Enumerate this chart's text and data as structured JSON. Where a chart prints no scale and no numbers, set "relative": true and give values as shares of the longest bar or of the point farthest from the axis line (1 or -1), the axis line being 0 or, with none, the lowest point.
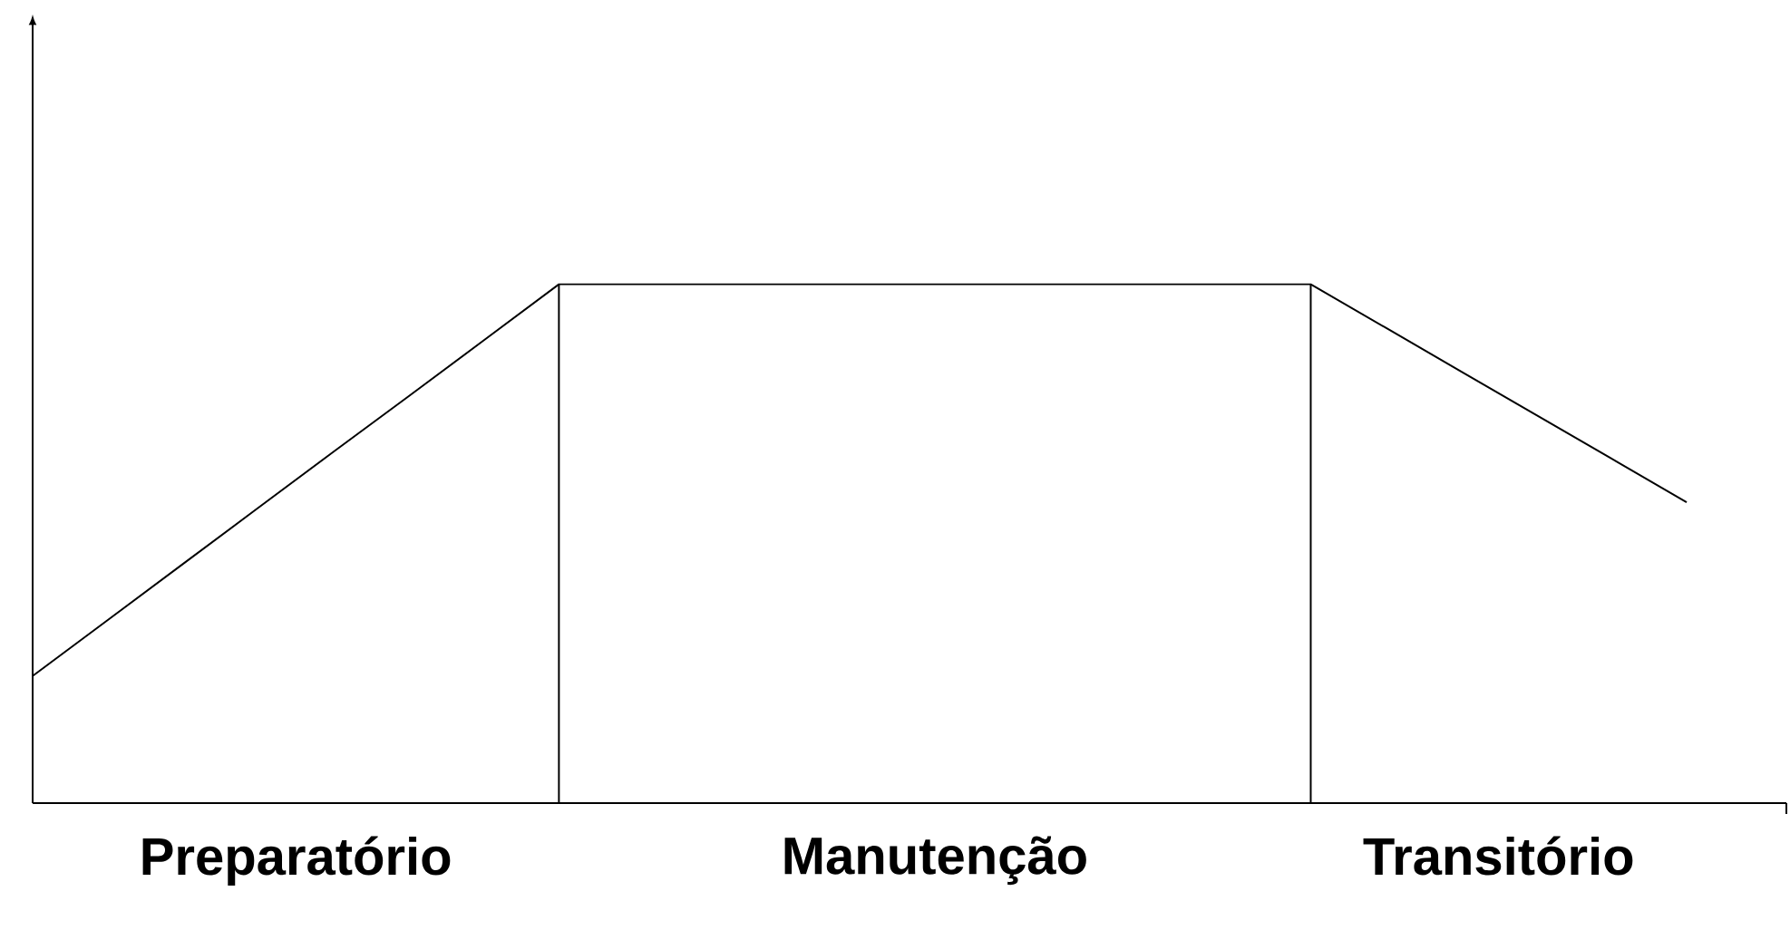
{
  "chart_data": {
    "type": "line",
    "relative": true,
    "categories": [
      null,
      null,
      null,
      null,
      null,
      null,
      null,
      null,
      null,
      null,
      null,
      null,
      null,
      null,
      null,
      null,
      null,
      null,
      null,
      null,
      null,
      null,
      null
    ],
    "series": [
      {
        "color": "#000000",
        "values": [
          0.245,
          0.353,
          0.461,
          0.569,
          0.677,
          0.784,
          0.892,
          1,
          1,
          1,
          1,
          1,
          1,
          1,
          1,
          1,
          1,
          1,
          0.916,
          0.832,
          0.748,
          0.664,
          0.58
        ]
      }
    ],
    "annotations": [
      "Preparatório",
      "Manutenção",
      "Transitório"
    ]
  }
}
